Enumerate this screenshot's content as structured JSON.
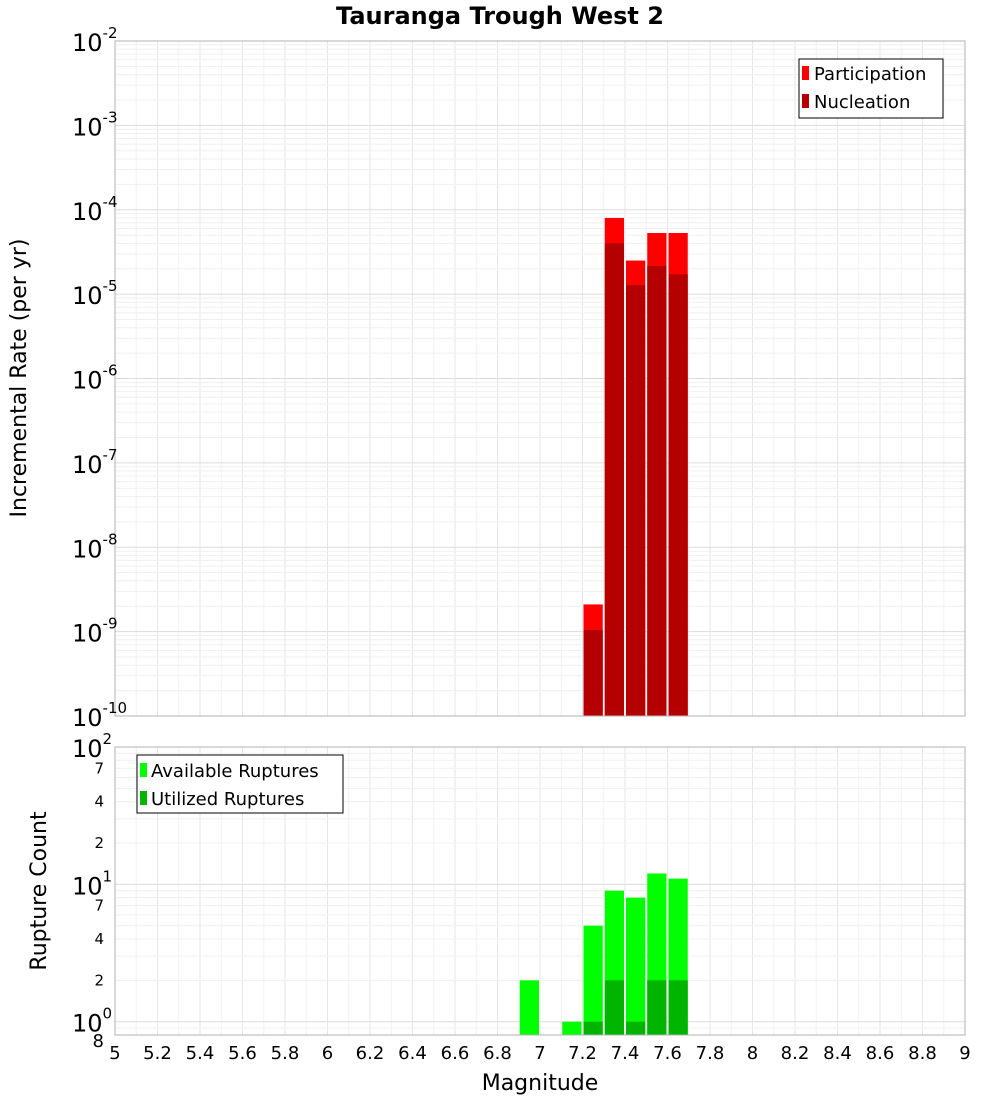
{
  "chart_data": [
    {
      "type": "bar",
      "title": "Tauranga Trough West 2",
      "xlabel": "Magnitude",
      "ylabel": "Incremental Rate (per yr)",
      "yscale": "log",
      "xlim": [
        5,
        9
      ],
      "ylim": [
        1e-10,
        0.01
      ],
      "bin_width": 0.1,
      "x_ticks": [
        "5",
        "5.2",
        "5.4",
        "5.6",
        "5.8",
        "6",
        "6.2",
        "6.4",
        "6.6",
        "6.8",
        "7",
        "7.2",
        "7.4",
        "7.6",
        "7.8",
        "8",
        "8.2",
        "8.4",
        "8.6",
        "8.8",
        "9"
      ],
      "y_ticks": [
        {
          "base": "10",
          "exp": "-2",
          "value": 0.01
        },
        {
          "base": "10",
          "exp": "-3",
          "value": 0.001
        },
        {
          "base": "10",
          "exp": "-4",
          "value": 0.0001
        },
        {
          "base": "10",
          "exp": "-5",
          "value": 1e-05
        },
        {
          "base": "10",
          "exp": "-6",
          "value": 1e-06
        },
        {
          "base": "10",
          "exp": "-7",
          "value": 1e-07
        },
        {
          "base": "10",
          "exp": "-8",
          "value": 1e-08
        },
        {
          "base": "10",
          "exp": "-9",
          "value": 1e-09
        },
        {
          "base": "10",
          "exp": "-10",
          "value": 1e-10
        }
      ],
      "legend": {
        "position": "top-right"
      },
      "series": [
        {
          "name": "Participation",
          "color": "#ff0000",
          "x": [
            7.25,
            7.35,
            7.45,
            7.55,
            7.65
          ],
          "values": [
            2.1e-09,
            8e-05,
            2.5e-05,
            5.3e-05,
            5.3e-05
          ]
        },
        {
          "name": "Nucleation",
          "color": "#b40000",
          "x": [
            7.25,
            7.35,
            7.45,
            7.55,
            7.65
          ],
          "values": [
            1.05e-09,
            4e-05,
            1.28e-05,
            2.15e-05,
            1.72e-05
          ]
        }
      ]
    },
    {
      "type": "bar",
      "xlabel": "Magnitude",
      "ylabel": "Rupture Count",
      "yscale": "log",
      "xlim": [
        5,
        9
      ],
      "ylim": [
        0.8,
        100
      ],
      "bin_width": 0.1,
      "y_ticks": [
        {
          "base": "10",
          "exp": "2",
          "value": 100
        },
        {
          "base": "10",
          "exp": "1",
          "value": 10
        },
        {
          "base": "10",
          "exp": "0",
          "value": 1
        }
      ],
      "y_minor_ticks": [
        {
          "label": "7",
          "value": 70
        },
        {
          "label": "4",
          "value": 40
        },
        {
          "label": "2",
          "value": 20
        },
        {
          "label": "7",
          "value": 7
        },
        {
          "label": "4",
          "value": 4
        },
        {
          "label": "2",
          "value": 2
        },
        {
          "label": "8",
          "value": 0.8
        }
      ],
      "legend": {
        "position": "top-left"
      },
      "series": [
        {
          "name": "Available Ruptures",
          "color": "#00ff00",
          "x": [
            6.95,
            7.15,
            7.25,
            7.35,
            7.45,
            7.55,
            7.65
          ],
          "values": [
            2,
            1,
            5,
            9,
            8,
            12,
            11
          ]
        },
        {
          "name": "Utilized Ruptures",
          "color": "#00b400",
          "x": [
            7.25,
            7.35,
            7.45,
            7.55,
            7.65
          ],
          "values": [
            1,
            2,
            1,
            2,
            2
          ]
        }
      ]
    }
  ]
}
